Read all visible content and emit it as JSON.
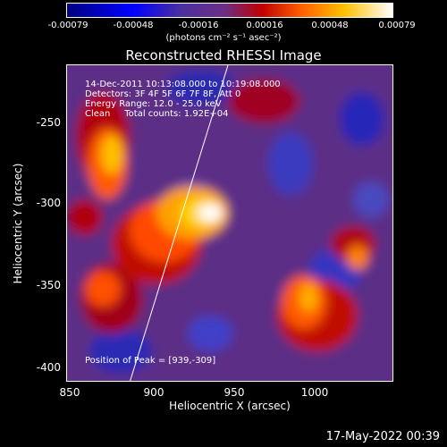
{
  "colorbar": {
    "ticks": [
      "-0.00079",
      "-0.00048",
      "-0.00016",
      "0.00016",
      "0.00048",
      "0.00079"
    ],
    "unit_label": "(photons cm⁻² s⁻¹ asec⁻²)"
  },
  "title": "Reconstructed RHESSI Image",
  "annotations": {
    "time": "14-Dec-2011 10:13:08.000 to 10:19:08.000",
    "detectors": "Detectors: 3F 4F 5F 6F 7F 8F, Att 0",
    "energy": "Energy Range: 12.0 - 25.0 keV",
    "clean": "Clean     Total counts: 1.92E+04",
    "peak": "Position of Peak = [939,-309]"
  },
  "axes": {
    "xlabel": "Heliocentric X (arcsec)",
    "ylabel": "Heliocentric Y (arcsec)",
    "xticks": [
      "850",
      "900",
      "950",
      "1000"
    ],
    "yticks": [
      "-250",
      "-300",
      "-350",
      "-400"
    ]
  },
  "footer": "17-May-2022 00:39"
}
